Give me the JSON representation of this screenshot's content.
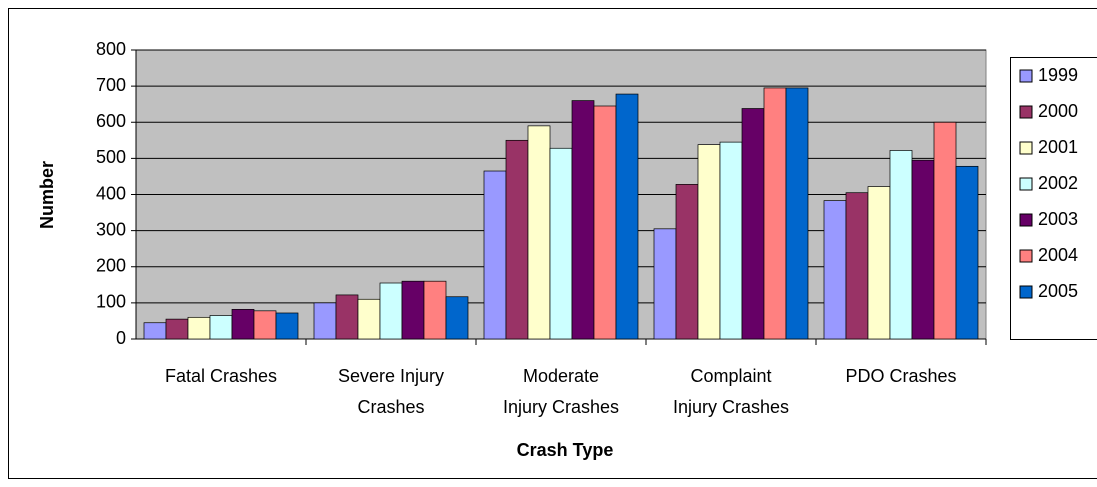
{
  "chart_data": {
    "type": "bar",
    "x_label": "Crash Type",
    "y_label": "Number",
    "categories": [
      "Fatal Crashes",
      "Severe Injury\nCrashes",
      "Moderate\nInjury Crashes",
      "Complaint\nInjury Crashes",
      "PDO Crashes"
    ],
    "series": [
      {
        "name": "1999",
        "color": "#9999ff",
        "values": [
          45,
          100,
          465,
          305,
          383
        ]
      },
      {
        "name": "2000",
        "color": "#993366",
        "values": [
          55,
          122,
          550,
          428,
          405
        ]
      },
      {
        "name": "2001",
        "color": "#ffffcc",
        "values": [
          60,
          110,
          590,
          538,
          422
        ]
      },
      {
        "name": "2002",
        "color": "#ccffff",
        "values": [
          65,
          155,
          528,
          545,
          522
        ]
      },
      {
        "name": "2003",
        "color": "#660066",
        "values": [
          82,
          160,
          660,
          638,
          495
        ]
      },
      {
        "name": "2004",
        "color": "#ff8080",
        "values": [
          78,
          160,
          645,
          695,
          600
        ]
      },
      {
        "name": "2005",
        "color": "#0066cc",
        "values": [
          72,
          117,
          678,
          695,
          478
        ]
      }
    ],
    "ylim": [
      0,
      800
    ],
    "yticks": [
      0,
      100,
      200,
      300,
      400,
      500,
      600,
      700,
      800
    ],
    "grid": true,
    "legend": "right"
  }
}
